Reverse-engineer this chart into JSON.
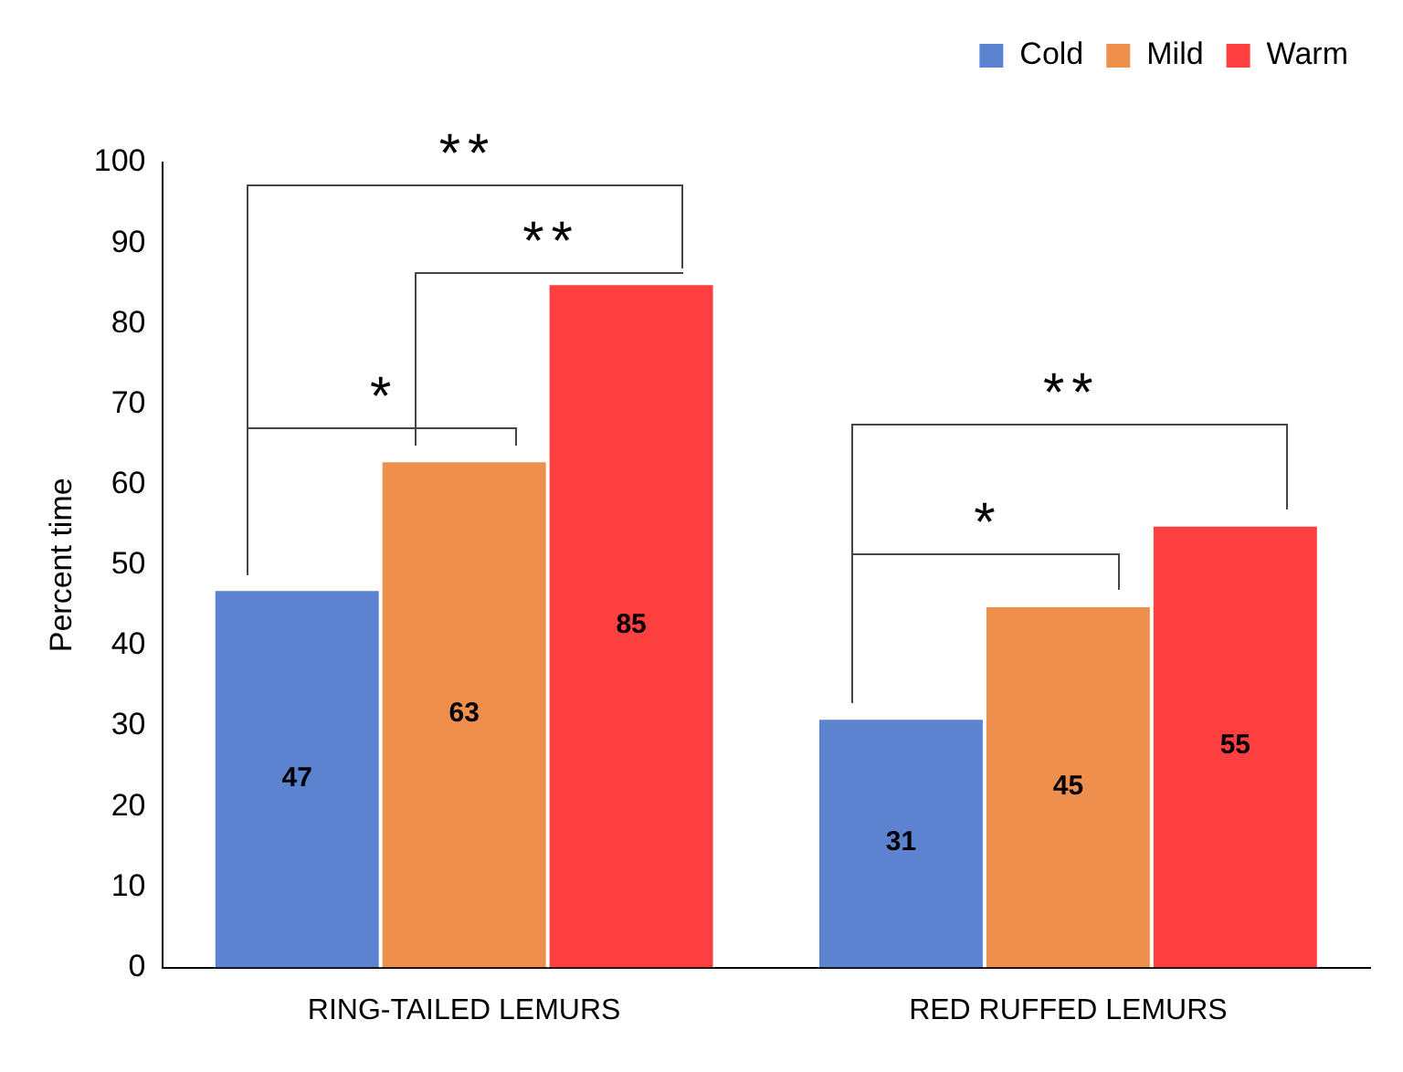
{
  "chart_data": {
    "type": "bar",
    "ylabel": "Percent time",
    "categories": [
      "RING-TAILED LEMURS",
      "RED RUFFED LEMURS"
    ],
    "series": [
      {
        "name": "Cold",
        "color": "#5b83cf",
        "values": [
          47,
          31
        ]
      },
      {
        "name": "Mild",
        "color": "#ef8f4e",
        "values": [
          63,
          45
        ]
      },
      {
        "name": "Warm",
        "color": "#fd3f3f",
        "values": [
          85,
          55
        ]
      }
    ],
    "ylim": [
      0,
      100
    ],
    "yticks": [
      0,
      10,
      20,
      30,
      40,
      50,
      60,
      70,
      80,
      90,
      100
    ],
    "grid": false,
    "legend": "top right",
    "data_labels": true,
    "annotations": [
      "**",
      "**",
      "*",
      "**",
      "*"
    ]
  }
}
